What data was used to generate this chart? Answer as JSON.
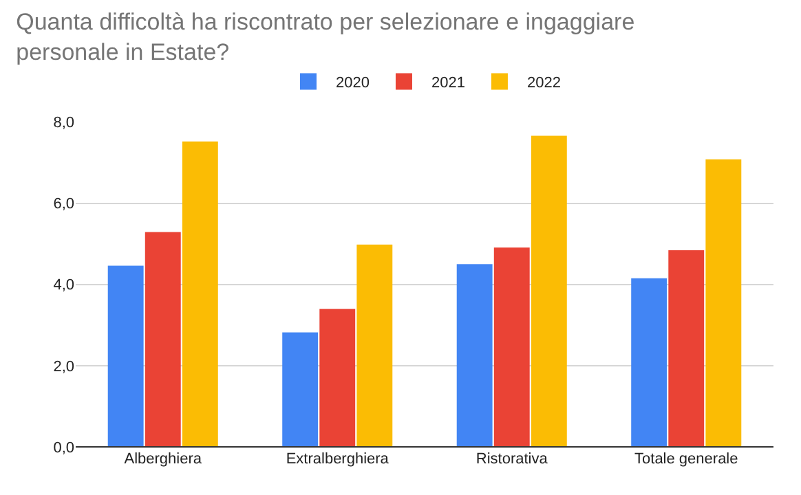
{
  "chart_data": {
    "type": "bar",
    "title": "Quanta difficoltà ha riscontrato per selezionare e ingaggiare personale in Estate?",
    "categories": [
      "Alberghiera",
      "Extralberghiera",
      "Ristorativa",
      "Totale generale"
    ],
    "series": [
      {
        "name": "2020",
        "color": "#4285f4",
        "values": [
          4.46,
          2.82,
          4.5,
          4.15
        ]
      },
      {
        "name": "2021",
        "color": "#ea4335",
        "values": [
          5.29,
          3.4,
          4.91,
          4.84
        ]
      },
      {
        "name": "2022",
        "color": "#fbbc04",
        "values": [
          7.52,
          4.98,
          7.66,
          7.08
        ]
      }
    ],
    "ylim": [
      0,
      8
    ],
    "yticks": [
      {
        "value": 0,
        "label": "0,0"
      },
      {
        "value": 2,
        "label": "2,0"
      },
      {
        "value": 4,
        "label": "4,0"
      },
      {
        "value": 6,
        "label": "6,0"
      },
      {
        "value": 8,
        "label": "8,0"
      }
    ],
    "grid": "y",
    "legend": "top"
  }
}
